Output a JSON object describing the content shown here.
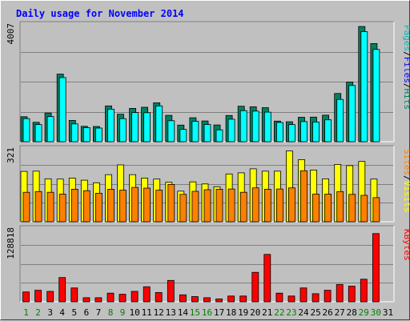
{
  "chart_data": {
    "type": "bar",
    "title": "Daily usage for November 2014",
    "categories": [
      "1",
      "2",
      "3",
      "4",
      "5",
      "6",
      "7",
      "8",
      "9",
      "10",
      "11",
      "12",
      "13",
      "14",
      "15",
      "16",
      "17",
      "18",
      "19",
      "20",
      "21",
      "22",
      "23",
      "24",
      "25",
      "26",
      "27",
      "28",
      "29",
      "30",
      "31"
    ],
    "weekend_days": [
      "1",
      "2",
      "8",
      "9",
      "15",
      "16",
      "22",
      "23",
      "29",
      "30"
    ],
    "colors": {
      "title": "#0000ff",
      "background": "#c0c0c0",
      "plot_background": "#c0c0c0",
      "gridline": "#808080",
      "weekday_label": "#000000",
      "weekend_label": "#008000",
      "pages": "#008060",
      "files": "#0000ff",
      "hits": "#00ffff",
      "visits": "#ffff00",
      "sites": "#ff8000",
      "kbytes": "#ff0000",
      "separator": "#000000"
    },
    "panels": [
      {
        "ymax_label": "4007",
        "ylim": [
          0,
          4007
        ],
        "legend": [
          {
            "text": "Pages",
            "color": "#00bbbb"
          },
          {
            "text": "/",
            "color": "#000000"
          },
          {
            "text": "Files",
            "color": "#0000ff"
          },
          {
            "text": "/",
            "color": "#000000"
          },
          {
            "text": "Hits",
            "color": "#008060"
          }
        ],
        "series": [
          {
            "name": "Hits",
            "color": "#008060",
            "values": [
              845,
              655,
              970,
              2285,
              720,
              520,
              515,
              1210,
              930,
              1125,
              1165,
              1315,
              890,
              560,
              810,
              700,
              565,
              885,
              1200,
              1180,
              1150,
              695,
              675,
              825,
              830,
              895,
              1630,
              2020,
              3895,
              3320,
              0
            ]
          },
          {
            "name": "Files",
            "color": "#00ffff",
            "values": [
              780,
              580,
              850,
              2170,
              600,
              475,
              460,
              1100,
              780,
              985,
              980,
              1210,
              710,
              415,
              690,
              580,
              400,
              760,
              1050,
              1035,
              1000,
              650,
              580,
              680,
              665,
              740,
              1430,
              1900,
              3720,
              3120,
              0
            ]
          }
        ]
      },
      {
        "ymax_label": "321",
        "ylim": [
          0,
          321
        ],
        "legend": [
          {
            "text": "Sites",
            "color": "#ff8000"
          },
          {
            "text": "/",
            "color": "#000000"
          },
          {
            "text": "Visits",
            "color": "#ffff00"
          }
        ],
        "series": [
          {
            "name": "Visits",
            "color": "#ffff00",
            "values": [
              217,
              218,
              185,
              184,
              188,
              179,
              168,
              203,
              245,
              203,
              188,
              184,
              170,
              132,
              172,
              163,
              151,
              206,
              211,
              228,
              218,
              218,
              305,
              268,
              223,
              185,
              247,
              242,
              260,
              184,
              0
            ]
          },
          {
            "name": "Sites",
            "color": "#ff8000",
            "values": [
              127,
              130,
              127,
              119,
              140,
              134,
              123,
              140,
              136,
              148,
              145,
              136,
              161,
              118,
              131,
              138,
              140,
              141,
              127,
              146,
              140,
              141,
              146,
              220,
              119,
              119,
              130,
              118,
              114,
              104,
              0
            ]
          }
        ]
      },
      {
        "ymax_label": "128818",
        "ylim": [
          0,
          128818
        ],
        "legend": [
          {
            "text": "KBytes",
            "color": "#ff0000"
          }
        ],
        "series": [
          {
            "name": "KBytes",
            "color": "#ff0000",
            "values": [
              17000,
              20000,
              18000,
              42000,
              24000,
              7000,
              7000,
              15000,
              13000,
              18000,
              26000,
              16000,
              37000,
              12000,
              9000,
              7000,
              5000,
              10000,
              10000,
              51000,
              82000,
              15000,
              10000,
              24000,
              14000,
              20000,
              30000,
              27000,
              39000,
              118000,
              0
            ]
          }
        ]
      }
    ],
    "grid": true
  }
}
